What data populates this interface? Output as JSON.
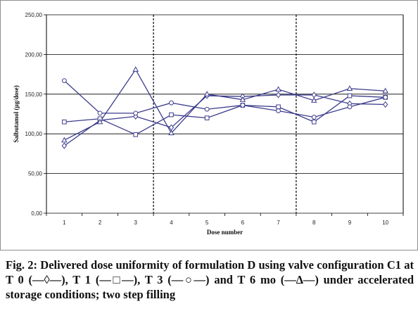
{
  "chart_data": {
    "type": "line",
    "xlabel": "Dose number",
    "ylabel": "Salbutamol (µg/dose)",
    "categories": [
      1,
      2,
      3,
      4,
      5,
      6,
      7,
      8,
      9,
      10
    ],
    "ylim": [
      0,
      250
    ],
    "yticks": [
      "0,00",
      "50,00",
      "100,00",
      "150,00",
      "200,00",
      "250,00"
    ],
    "grid": "horizontal",
    "dividers_between_doses": [
      [
        3,
        4
      ],
      [
        7,
        8
      ]
    ],
    "series": [
      {
        "marker": "diamond",
        "values": [
          85,
          117,
          122,
          108,
          148,
          147,
          149,
          149,
          138,
          137
        ]
      },
      {
        "marker": "square",
        "values": [
          115,
          119,
          99,
          124,
          120,
          136,
          134,
          115,
          148,
          146
        ]
      },
      {
        "marker": "circle",
        "values": [
          167,
          126,
          126,
          139,
          131,
          136,
          129,
          121,
          134,
          146
        ]
      },
      {
        "marker": "triangle",
        "values": [
          92,
          115,
          181,
          101,
          150,
          143,
          156,
          142,
          157,
          154
        ]
      }
    ],
    "colors": {
      "line": "#3c3c8c",
      "grid": "#000000",
      "divider": "#000000"
    }
  },
  "caption": "Fig. 2: Delivered dose uniformity of formulation D using valve configuration C1 at T 0 (—◊—), T 1 (—□—), T 3 (—○—) and T 6 mo (—∆—) under accelerated storage conditions; two step filling"
}
